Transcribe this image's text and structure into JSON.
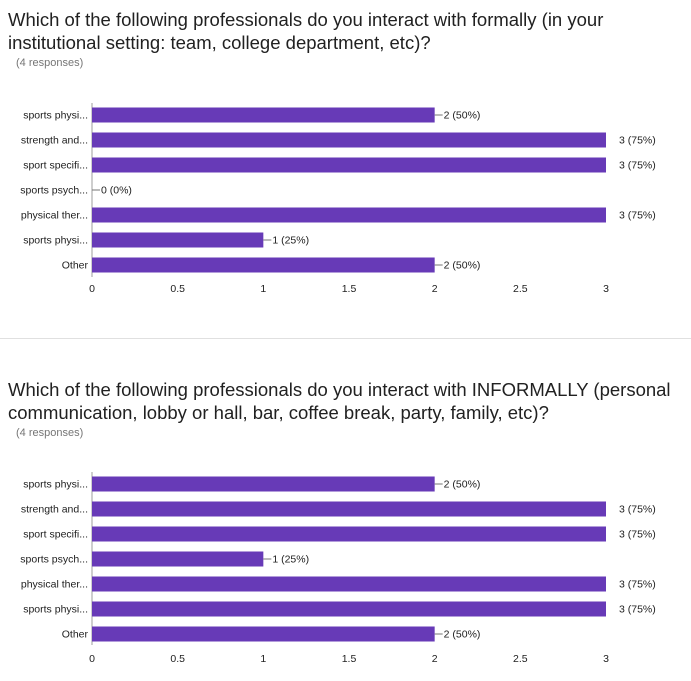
{
  "questions": [
    {
      "title": "Which of the following professionals do you interact with formally (in your institutional setting: team, college department, etc)?",
      "responses": "(4 responses)"
    },
    {
      "title": "Which of the following professionals do you interact with INFORMALLY (personal communication, lobby or hall, bar, coffee break, party, family, etc)?",
      "responses": "(4 responses)"
    }
  ],
  "colors": {
    "bar": "#673ab7",
    "axis": "#9e9e9e",
    "text": "#212121",
    "muted": "#757575"
  },
  "chart_data": [
    {
      "type": "bar",
      "orientation": "horizontal",
      "categories": [
        "sports physi...",
        "strength and...",
        "sport specifi...",
        "sports psych...",
        "physical ther...",
        "sports physi...",
        "Other"
      ],
      "values": [
        2,
        3,
        3,
        0,
        3,
        1,
        2
      ],
      "value_labels": [
        "2 (50%)",
        "3 (75%)",
        "3 (75%)",
        "0 (0%)",
        "3 (75%)",
        "1 (25%)",
        "2 (50%)"
      ],
      "xticks": [
        "0",
        "0.5",
        "1",
        "1.5",
        "2",
        "2.5",
        "3"
      ],
      "xlim": [
        0,
        3
      ]
    },
    {
      "type": "bar",
      "orientation": "horizontal",
      "categories": [
        "sports physi...",
        "strength and...",
        "sport specifi...",
        "sports psych...",
        "physical ther...",
        "sports physi...",
        "Other"
      ],
      "values": [
        2,
        3,
        3,
        1,
        3,
        3,
        2
      ],
      "value_labels": [
        "2 (50%)",
        "3 (75%)",
        "3 (75%)",
        "1 (25%)",
        "3 (75%)",
        "3 (75%)",
        "2 (50%)"
      ],
      "xticks": [
        "0",
        "0.5",
        "1",
        "1.5",
        "2",
        "2.5",
        "3"
      ],
      "xlim": [
        0,
        3
      ]
    }
  ]
}
